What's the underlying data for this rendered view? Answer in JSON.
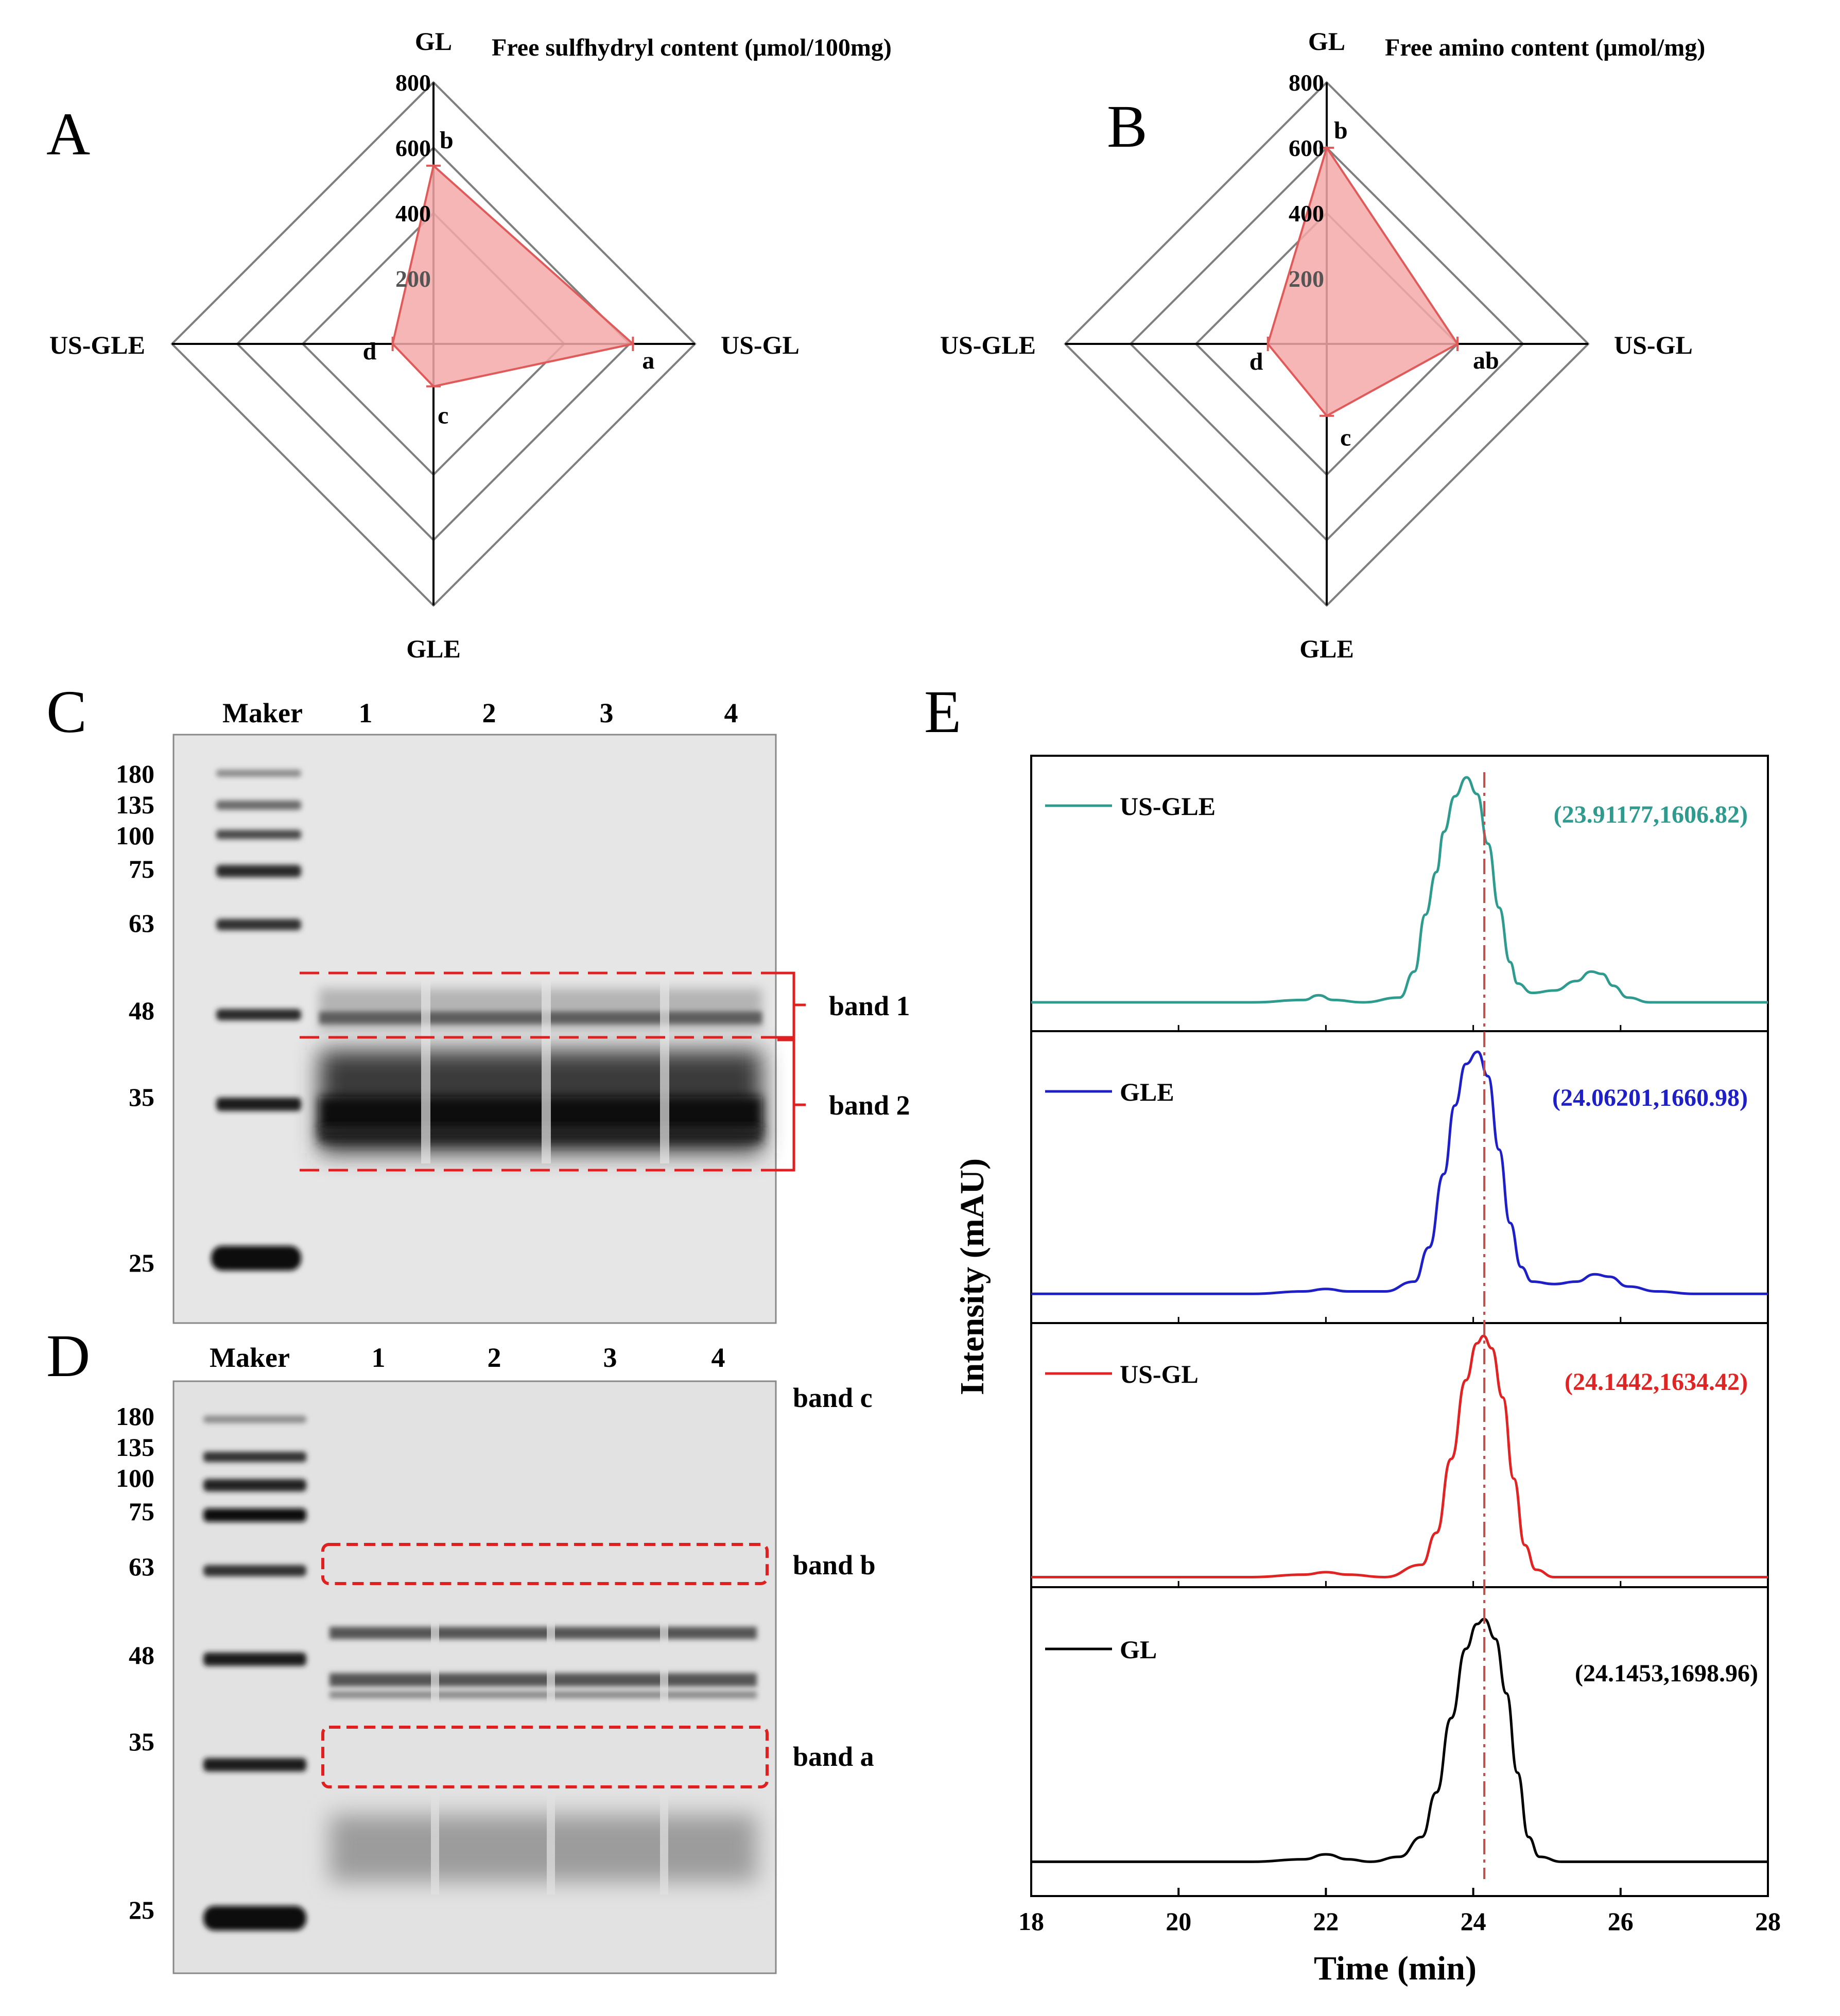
{
  "colors": {
    "radar_fill": "#f4a9a8",
    "radar_line": "#e05a5a",
    "grid": "#7f7f7f",
    "gel_box": "#888888",
    "dashed_box": "#e02020",
    "peak_line": "#c0504d",
    "us_gle": "#2e9b8e",
    "gle": "#1f1fc8",
    "us_gl": "#e02424",
    "gl": "#000000"
  },
  "chart_data": [
    {
      "panel": "A",
      "type": "radar",
      "title": "Free sulfhydryl content (μmol/100mg)",
      "axes": [
        "GL",
        "US-GL",
        "GLE",
        "US-GLE"
      ],
      "values": [
        545,
        610,
        130,
        125
      ],
      "letters": [
        "b",
        "a",
        "c",
        "d"
      ],
      "rlim": [
        200,
        800
      ],
      "ticks": [
        "200",
        "400",
        "600",
        "800"
      ],
      "grid": true
    },
    {
      "panel": "B",
      "type": "radar",
      "title": "Free amino content (μmol/mg)",
      "axes": [
        "GL",
        "US-GL",
        "GLE",
        "US-GLE"
      ],
      "values": [
        600,
        400,
        220,
        180
      ],
      "letters": [
        "b",
        "ab",
        "c",
        "d"
      ],
      "rlim": [
        200,
        800
      ],
      "ticks": [
        "200",
        "400",
        "600",
        "800"
      ],
      "grid": true
    },
    {
      "panel": "E",
      "type": "line",
      "xlabel": "Time (min)",
      "ylabel": "Intensity (mAU)",
      "xlim": [
        18,
        28
      ],
      "xticks": [
        "18",
        "20",
        "22",
        "24",
        "26",
        "28"
      ],
      "peak_marker_x": 24.15,
      "series": [
        {
          "name": "US-GLE",
          "color": "#2e9b8e",
          "label": "(23.91177,1606.82)",
          "x": [
            18,
            21,
            21.7,
            21.9,
            22.1,
            22.5,
            23.0,
            23.2,
            23.35,
            23.5,
            23.6,
            23.75,
            23.91,
            24.05,
            24.2,
            24.35,
            24.5,
            24.6,
            24.8,
            25.1,
            25.4,
            25.6,
            25.75,
            25.9,
            26.1,
            26.4,
            27,
            28
          ],
          "y": [
            0.05,
            0.05,
            0.06,
            0.08,
            0.06,
            0.05,
            0.07,
            0.18,
            0.42,
            0.6,
            0.77,
            0.92,
            1.0,
            0.93,
            0.72,
            0.45,
            0.22,
            0.13,
            0.09,
            0.1,
            0.14,
            0.18,
            0.17,
            0.12,
            0.07,
            0.05,
            0.05,
            0.05
          ]
        },
        {
          "name": "GLE",
          "color": "#1f1fc8",
          "label": "(24.06201,1660.98)",
          "x": [
            18,
            21,
            21.7,
            22.0,
            22.3,
            22.8,
            23.2,
            23.4,
            23.6,
            23.75,
            23.9,
            24.06,
            24.2,
            24.35,
            24.5,
            24.65,
            24.8,
            25.1,
            25.4,
            25.65,
            25.85,
            26.1,
            26.5,
            27,
            28
          ],
          "y": [
            0.01,
            0.01,
            0.02,
            0.03,
            0.02,
            0.02,
            0.06,
            0.2,
            0.5,
            0.78,
            0.95,
            1.0,
            0.9,
            0.6,
            0.3,
            0.12,
            0.06,
            0.05,
            0.06,
            0.09,
            0.08,
            0.04,
            0.02,
            0.01,
            0.01
          ]
        },
        {
          "name": "US-GL",
          "color": "#e02424",
          "label": "(24.1442,1634.42)",
          "x": [
            18,
            21,
            21.7,
            22.0,
            22.3,
            22.8,
            23.3,
            23.5,
            23.7,
            23.9,
            24.05,
            24.14,
            24.25,
            24.4,
            24.55,
            24.7,
            24.85,
            25.1,
            25.6,
            27,
            28
          ],
          "y": [
            0.02,
            0.02,
            0.03,
            0.04,
            0.03,
            0.02,
            0.07,
            0.2,
            0.5,
            0.82,
            0.97,
            1.0,
            0.95,
            0.75,
            0.42,
            0.15,
            0.05,
            0.02,
            0.02,
            0.02,
            0.02
          ]
        },
        {
          "name": "GL",
          "color": "#000000",
          "label": "(24.1453,1698.96)",
          "x": [
            18,
            21,
            21.7,
            22.0,
            22.3,
            22.6,
            23.0,
            23.3,
            23.5,
            23.7,
            23.9,
            24.05,
            24.15,
            24.3,
            24.45,
            24.6,
            24.75,
            24.9,
            25.2,
            25.6,
            27,
            28
          ],
          "y": [
            0.02,
            0.02,
            0.03,
            0.05,
            0.03,
            0.02,
            0.04,
            0.12,
            0.3,
            0.6,
            0.88,
            0.98,
            1.0,
            0.92,
            0.7,
            0.38,
            0.12,
            0.04,
            0.02,
            0.02,
            0.02,
            0.02
          ]
        }
      ]
    }
  ],
  "panels": {
    "A": "A",
    "B": "B",
    "C": "C",
    "D": "D",
    "E": "E"
  },
  "gel_c": {
    "maker": "Maker",
    "lanes": [
      "1",
      "2",
      "3",
      "4"
    ],
    "mw": [
      "180",
      "135",
      "100",
      "75",
      "63",
      "48",
      "35",
      "25"
    ],
    "bands": [
      "band 1",
      "band 2"
    ]
  },
  "gel_d": {
    "maker": "Maker",
    "lanes": [
      "1",
      "2",
      "3",
      "4"
    ],
    "mw": [
      "180",
      "135",
      "100",
      "75",
      "63",
      "48",
      "35",
      "25"
    ],
    "bands": [
      "band c",
      "band b",
      "band a"
    ]
  }
}
